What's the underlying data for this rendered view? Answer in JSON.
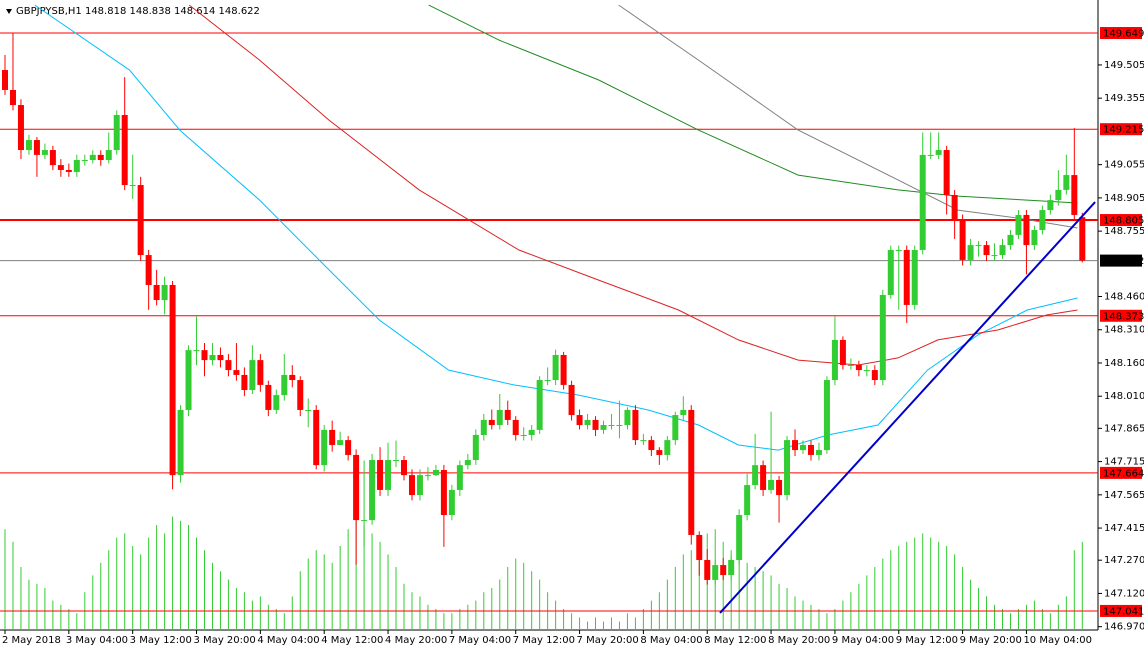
{
  "chart_data": {
    "type": "candlestick",
    "title": "GBPJPYSB,H1  148.818 148.838 148.614 148.622",
    "ylim": [
      146.955,
      149.798
    ],
    "yticks": [
      149.505,
      149.355,
      149.055,
      148.905,
      148.755,
      {
        "value": 148.46,
        "label": "148.460"
      },
      {
        "value": 148.31,
        "label": "148.310"
      },
      {
        "value": 148.16,
        "label": "148.160"
      },
      {
        "value": 148.01,
        "label": "148.010"
      },
      147.865,
      147.715,
      147.565,
      147.415,
      {
        "value": 147.27,
        "label": "147.270"
      },
      {
        "value": 147.12,
        "label": "147.120"
      },
      {
        "value": 146.97,
        "label": "146.970"
      }
    ],
    "categories": [
      "2 May 2018",
      null,
      null,
      null,
      null,
      null,
      null,
      null,
      "3 May 04:00",
      null,
      null,
      null,
      null,
      null,
      null,
      null,
      "3 May 12:00",
      null,
      null,
      null,
      null,
      null,
      null,
      null,
      "3 May 20:00",
      null,
      null,
      null,
      null,
      null,
      null,
      null,
      "4 May 04:00",
      null,
      null,
      null,
      null,
      null,
      null,
      null,
      "4 May 12:00",
      null,
      null,
      null,
      null,
      null,
      null,
      null,
      "4 May 20:00",
      null,
      null,
      null,
      null,
      null,
      null,
      null,
      "7 May 04:00",
      null,
      null,
      null,
      null,
      null,
      null,
      null,
      "7 May 12:00",
      null,
      null,
      null,
      null,
      null,
      null,
      null,
      "7 May 20:00",
      null,
      null,
      null,
      null,
      null,
      null,
      null,
      "8 May 04:00",
      null,
      null,
      null,
      null,
      null,
      null,
      null,
      "8 May 12:00",
      null,
      null,
      null,
      null,
      null,
      null,
      null,
      "8 May 20:00",
      null,
      null,
      null,
      null,
      null,
      null,
      null,
      "9 May 04:00",
      null,
      null,
      null,
      null,
      null,
      null,
      null,
      "9 May 12:00",
      null,
      null,
      null,
      null,
      null,
      null,
      null,
      "9 May 20:00",
      null,
      null,
      null,
      null,
      null,
      null,
      null,
      "10 May 04:00",
      null,
      null,
      null,
      null,
      null,
      null,
      null
    ],
    "bull_color": "#32cd32",
    "bear_color": "#ff0000",
    "ohlc": [
      [
        149.482,
        149.55,
        149.37,
        149.392
      ],
      [
        149.392,
        149.65,
        149.3,
        149.324
      ],
      [
        149.324,
        149.35,
        149.08,
        149.121
      ],
      [
        149.121,
        149.19,
        149.1,
        149.166
      ],
      [
        149.166,
        149.18,
        149.0,
        149.099
      ],
      [
        149.099,
        149.15,
        149.08,
        149.121
      ],
      [
        149.121,
        149.14,
        149.03,
        149.053
      ],
      [
        149.053,
        149.08,
        149.0,
        149.031
      ],
      [
        149.031,
        149.06,
        149.0,
        149.022
      ],
      [
        149.022,
        149.1,
        149.0,
        149.076
      ],
      [
        149.076,
        149.1,
        149.05,
        149.076
      ],
      [
        149.076,
        149.12,
        149.06,
        149.099
      ],
      [
        149.099,
        149.12,
        149.05,
        149.076
      ],
      [
        149.076,
        149.2,
        149.06,
        149.121
      ],
      [
        149.121,
        149.3,
        149.1,
        149.279
      ],
      [
        149.279,
        149.45,
        148.94,
        148.963
      ],
      [
        148.963,
        149.1,
        148.9,
        148.963
      ],
      [
        148.963,
        149.0,
        148.62,
        148.647
      ],
      [
        148.647,
        148.67,
        148.4,
        148.512
      ],
      [
        148.512,
        148.58,
        148.42,
        148.444
      ],
      [
        148.444,
        148.55,
        148.38,
        148.512
      ],
      [
        148.512,
        148.53,
        147.59,
        147.654
      ],
      [
        147.654,
        147.97,
        147.62,
        147.948
      ],
      [
        147.948,
        148.24,
        147.92,
        148.218
      ],
      [
        148.218,
        148.37,
        148.15,
        148.218
      ],
      [
        148.218,
        148.25,
        148.1,
        148.173
      ],
      [
        148.173,
        148.25,
        148.15,
        148.196
      ],
      [
        148.196,
        148.23,
        148.14,
        148.173
      ],
      [
        148.173,
        148.2,
        148.1,
        148.128
      ],
      [
        148.128,
        148.25,
        148.08,
        148.106
      ],
      [
        148.106,
        148.14,
        148.01,
        148.038
      ],
      [
        148.038,
        148.24,
        148.02,
        148.173
      ],
      [
        148.173,
        148.2,
        148.03,
        148.061
      ],
      [
        148.061,
        148.08,
        147.92,
        147.948
      ],
      [
        147.948,
        148.04,
        147.93,
        148.015
      ],
      [
        148.015,
        148.2,
        147.99,
        148.106
      ],
      [
        148.106,
        148.15,
        148.05,
        148.083
      ],
      [
        148.083,
        148.1,
        147.92,
        147.948
      ],
      [
        147.948,
        148.0,
        147.87,
        147.948
      ],
      [
        147.948,
        147.97,
        147.68,
        147.699
      ],
      [
        147.699,
        147.88,
        147.67,
        147.858
      ],
      [
        147.858,
        147.9,
        147.76,
        147.79
      ],
      [
        147.79,
        147.85,
        147.79,
        147.812
      ],
      [
        147.812,
        147.83,
        147.72,
        147.745
      ],
      [
        147.745,
        147.77,
        147.25,
        147.451
      ],
      [
        147.451,
        147.72,
        147.33,
        147.451
      ],
      [
        147.451,
        147.75,
        147.43,
        147.722
      ],
      [
        147.722,
        147.78,
        147.56,
        147.587
      ],
      [
        147.587,
        147.8,
        147.56,
        147.722
      ],
      [
        147.722,
        147.81,
        147.69,
        147.722
      ],
      [
        147.722,
        147.74,
        147.63,
        147.654
      ],
      [
        147.654,
        147.68,
        147.54,
        147.564
      ],
      [
        147.564,
        147.68,
        147.54,
        147.654
      ],
      [
        147.654,
        147.69,
        147.63,
        147.654
      ],
      [
        147.654,
        147.7,
        147.65,
        147.677
      ],
      [
        147.677,
        147.7,
        147.33,
        147.474
      ],
      [
        147.474,
        147.61,
        147.45,
        147.587
      ],
      [
        147.587,
        147.72,
        147.56,
        147.699
      ],
      [
        147.699,
        147.75,
        147.68,
        147.722
      ],
      [
        147.722,
        147.86,
        147.7,
        147.835
      ],
      [
        147.835,
        147.93,
        147.81,
        147.903
      ],
      [
        147.903,
        147.95,
        147.86,
        147.88
      ],
      [
        147.88,
        148.02,
        147.86,
        147.948
      ],
      [
        147.948,
        147.99,
        147.88,
        147.903
      ],
      [
        147.903,
        147.92,
        147.81,
        147.835
      ],
      [
        147.835,
        147.87,
        147.81,
        147.835
      ],
      [
        147.835,
        147.88,
        147.81,
        147.858
      ],
      [
        147.858,
        148.1,
        147.84,
        148.083
      ],
      [
        148.083,
        148.14,
        148.06,
        148.083
      ],
      [
        148.083,
        148.22,
        148.06,
        148.196
      ],
      [
        148.196,
        148.21,
        148.04,
        148.061
      ],
      [
        148.061,
        148.08,
        147.9,
        147.925
      ],
      [
        147.925,
        147.95,
        147.86,
        147.88
      ],
      [
        147.88,
        147.93,
        147.86,
        147.903
      ],
      [
        147.903,
        147.92,
        147.83,
        147.858
      ],
      [
        147.858,
        147.9,
        147.84,
        147.88
      ],
      [
        147.88,
        147.93,
        147.86,
        147.88
      ],
      [
        147.88,
        147.99,
        147.82,
        147.88
      ],
      [
        147.88,
        147.96,
        147.86,
        147.948
      ],
      [
        147.948,
        147.97,
        147.79,
        147.812
      ],
      [
        147.812,
        147.84,
        147.79,
        147.812
      ],
      [
        147.812,
        147.83,
        147.74,
        147.767
      ],
      [
        147.767,
        147.78,
        147.7,
        147.745
      ],
      [
        147.745,
        147.83,
        147.72,
        147.812
      ],
      [
        147.812,
        147.94,
        147.79,
        147.925
      ],
      [
        147.925,
        148.01,
        147.9,
        147.948
      ],
      [
        147.948,
        147.97,
        147.34,
        147.384
      ],
      [
        147.384,
        147.4,
        147.2,
        147.271
      ],
      [
        147.271,
        147.32,
        147.16,
        147.181
      ],
      [
        147.181,
        147.27,
        147.16,
        147.248
      ],
      [
        147.248,
        147.28,
        147.18,
        147.203
      ],
      [
        147.203,
        147.29,
        147.18,
        147.271
      ],
      [
        147.271,
        147.5,
        147.25,
        147.474
      ],
      [
        147.474,
        147.66,
        147.45,
        147.609
      ],
      [
        147.609,
        147.84,
        147.59,
        147.699
      ],
      [
        147.699,
        147.72,
        147.56,
        147.587
      ],
      [
        147.587,
        147.94,
        147.57,
        147.632
      ],
      [
        147.632,
        147.65,
        147.44,
        147.564
      ],
      [
        147.564,
        147.83,
        147.54,
        147.812
      ],
      [
        147.812,
        147.86,
        147.74,
        147.767
      ],
      [
        147.767,
        147.81,
        147.75,
        147.79
      ],
      [
        147.79,
        147.81,
        147.72,
        147.745
      ],
      [
        147.745,
        147.8,
        147.72,
        147.767
      ],
      [
        147.767,
        148.1,
        147.75,
        148.083
      ],
      [
        148.083,
        148.37,
        148.06,
        148.264
      ],
      [
        148.264,
        148.28,
        148.13,
        148.151
      ],
      [
        148.151,
        148.18,
        148.13,
        148.151
      ],
      [
        148.151,
        148.17,
        148.1,
        148.128
      ],
      [
        148.128,
        148.15,
        148.1,
        148.128
      ],
      [
        148.128,
        148.15,
        148.06,
        148.083
      ],
      [
        148.083,
        148.49,
        148.06,
        148.467
      ],
      [
        148.467,
        148.69,
        148.45,
        148.67
      ],
      [
        148.67,
        148.69,
        148.4,
        148.67
      ],
      [
        148.67,
        148.69,
        148.34,
        148.422
      ],
      [
        148.422,
        148.69,
        148.4,
        148.67
      ],
      [
        148.67,
        149.2,
        148.65,
        149.099
      ],
      [
        149.099,
        149.2,
        149.08,
        149.099
      ],
      [
        149.099,
        149.2,
        149.08,
        149.121
      ],
      [
        149.121,
        149.14,
        148.83,
        148.918
      ],
      [
        148.918,
        148.94,
        148.72,
        148.805
      ],
      [
        148.805,
        148.83,
        148.6,
        148.625
      ],
      [
        148.625,
        148.72,
        148.6,
        148.692
      ],
      [
        148.692,
        148.71,
        148.64,
        148.692
      ],
      [
        148.692,
        148.71,
        148.62,
        148.647
      ],
      [
        148.647,
        148.7,
        148.62,
        148.647
      ],
      [
        148.647,
        148.72,
        148.63,
        148.692
      ],
      [
        148.692,
        148.76,
        148.67,
        148.738
      ],
      [
        148.738,
        148.85,
        148.72,
        148.828
      ],
      [
        148.828,
        148.85,
        148.56,
        148.692
      ],
      [
        148.692,
        148.78,
        148.67,
        148.76
      ],
      [
        148.76,
        148.87,
        148.74,
        148.85
      ],
      [
        148.85,
        148.92,
        148.83,
        148.895
      ],
      [
        148.895,
        149.03,
        148.87,
        148.941
      ],
      [
        148.941,
        149.1,
        148.92,
        149.008
      ],
      [
        149.008,
        149.22,
        148.8,
        148.828
      ],
      [
        148.818,
        148.838,
        148.614,
        148.622
      ]
    ],
    "volume": {
      "color": "#32cd32",
      "vlim": [
        0,
        15000
      ],
      "values": [
        2400,
        2100,
        1500,
        1200,
        1100,
        1000,
        700,
        600,
        500,
        400,
        900,
        1300,
        1600,
        1900,
        2200,
        2300,
        2000,
        1800,
        2200,
        2500,
        2300,
        2700,
        2600,
        2500,
        2200,
        1900,
        1600,
        1400,
        1200,
        1000,
        900,
        700,
        800,
        600,
        500,
        400,
        800,
        1400,
        1700,
        1900,
        1800,
        1600,
        2000,
        2400,
        2800,
        2500,
        2300,
        2100,
        1800,
        1500,
        1100,
        900,
        800,
        600,
        500,
        400,
        400,
        500,
        600,
        700,
        900,
        1000,
        1200,
        1500,
        1700,
        1600,
        1400,
        1200,
        900,
        700,
        500,
        400,
        300,
        200,
        300,
        200,
        300,
        200,
        400,
        300,
        500,
        700,
        900,
        1200,
        1500,
        1800,
        1900,
        2100,
        2300,
        2400,
        2100,
        1900,
        1700,
        1600,
        1500,
        1400,
        1300,
        1100,
        1000,
        800,
        700,
        600,
        500,
        400,
        500,
        700,
        900,
        1100,
        1300,
        1500,
        1700,
        1900,
        2000,
        2100,
        2200,
        2300,
        2200,
        2100,
        2000,
        1800,
        1500,
        1200,
        1000,
        800,
        600,
        500,
        400,
        500,
        600,
        700,
        500,
        400,
        600,
        800,
        1900,
        2100
      ]
    },
    "moving_averages": [
      {
        "color": "#00bfff",
        "x": [
          3.75,
          15.6,
          21.9,
          31.9,
          40.6,
          46.9,
          55.6,
          63.75,
          71.9,
          80.6,
          86.9,
          91.9,
          96.9,
          103.1,
          109.4,
          115.6,
          121.9,
          128.1,
          134.4
        ],
        "values": [
          149.775,
          149.482,
          149.211,
          148.895,
          148.58,
          148.354,
          148.128,
          148.061,
          148.015,
          147.948,
          147.88,
          147.79,
          147.767,
          147.835,
          147.88,
          148.128,
          148.286,
          148.399,
          148.453
        ]
      },
      {
        "color": "#dd2222",
        "x": [
          23.1,
          31.9,
          40.6,
          51.9,
          64.4,
          74.4,
          84.4,
          91.9,
          99.4,
          106.9,
          111.9,
          116.9,
          124.4,
          130.6,
          134.4
        ],
        "values": [
          149.775,
          149.527,
          149.256,
          148.941,
          148.67,
          148.534,
          148.399,
          148.264,
          148.173,
          148.151,
          148.183,
          148.264,
          148.309,
          148.377,
          148.399
        ]
      },
      {
        "color": "#228b22",
        "x": [
          53.1,
          61.9,
          74.4,
          86.9,
          99.4,
          111.9,
          119.4,
          128.1,
          134.4
        ],
        "values": [
          149.775,
          149.617,
          149.437,
          149.211,
          149.008,
          148.941,
          148.913,
          148.895,
          148.882
        ]
      },
      {
        "color": "#808080",
        "x": [
          76.9,
          86.9,
          99.4,
          111.9,
          119.4,
          126.9,
          134.4
        ],
        "values": [
          149.775,
          149.527,
          149.211,
          148.986,
          148.85,
          148.814,
          148.769
        ]
      }
    ],
    "trendline": {
      "color": "#0000cc",
      "x": [
        89.6,
        136.6
      ],
      "values": [
        147.032,
        148.886
      ]
    },
    "levels": [
      {
        "value": 149.649,
        "color": "#ff0000",
        "width": 1
      },
      {
        "value": 149.215,
        "color": "#ff0000",
        "width": 1
      },
      {
        "value": 148.805,
        "color": "#ff0000",
        "width": 2
      },
      {
        "value": 148.622,
        "color": "#808080",
        "width": 1,
        "box": "#000000"
      },
      {
        "value": 148.373,
        "color": "#ff0000",
        "width": 1
      },
      {
        "value": 147.664,
        "color": "#ff0000",
        "width": 1
      },
      {
        "value": 147.041,
        "color": "#ff0000",
        "width": 1
      }
    ]
  }
}
